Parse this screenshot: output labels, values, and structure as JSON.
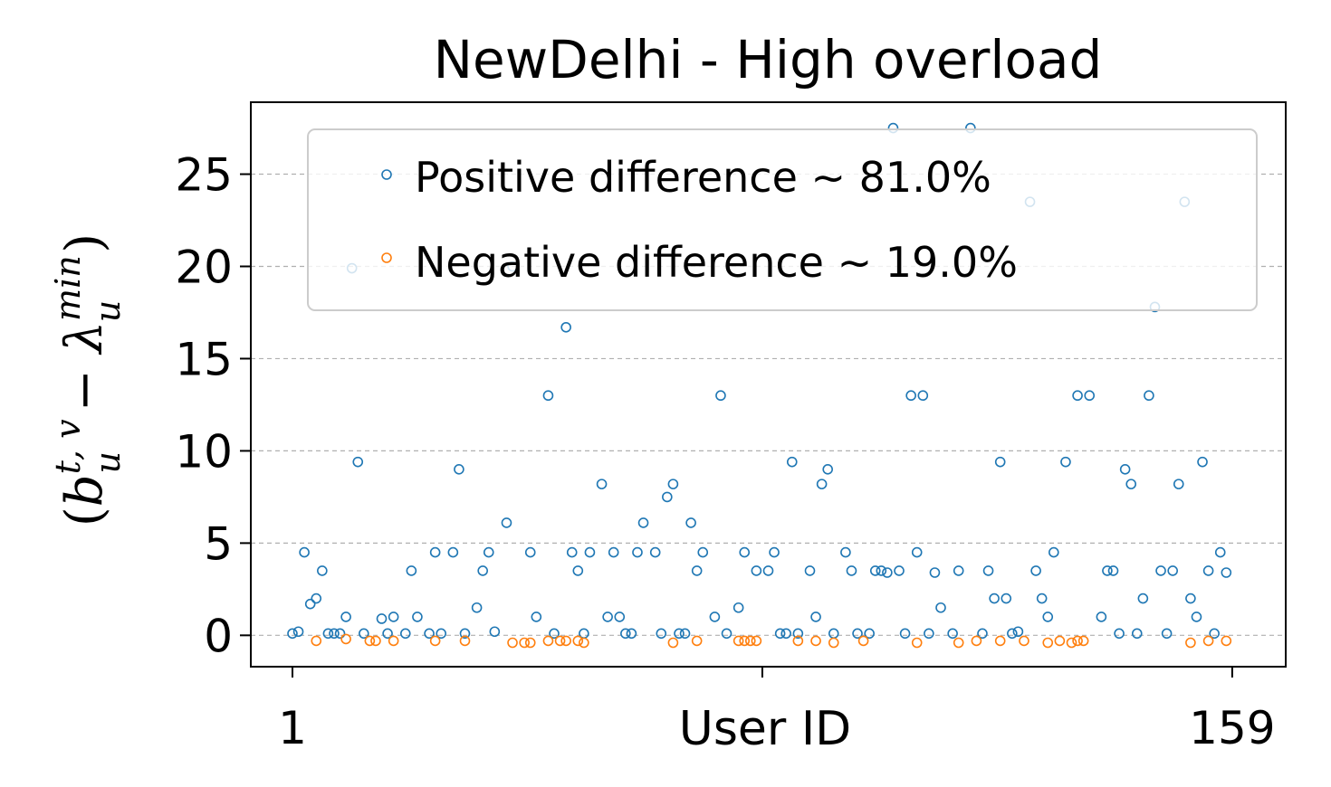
{
  "chart_data": {
    "type": "scatter",
    "title": "NewDelhi - High overload",
    "xlabel": "User ID",
    "ylabel": "(b_u^{t,v} − λ_u^{min})",
    "ylabel_parts": {
      "open": "(",
      "b": "b",
      "sup1": "t, v",
      "sub1": "u",
      "minus": " − ",
      "lambda": "λ",
      "sup2": "min",
      "sub2": "u",
      "close": ")"
    },
    "x_tick_labels": [
      "1",
      "159"
    ],
    "y_ticks": [
      0,
      5,
      10,
      15,
      20,
      25
    ],
    "y_tick_labels": [
      "0",
      "5",
      "10",
      "15",
      "20",
      "25"
    ],
    "xlim": [
      -6,
      168
    ],
    "ylim": [
      -1.7,
      28.9
    ],
    "grid": "y-dashed",
    "legend_position": "top-right",
    "colors": {
      "positive": "#1f77b4",
      "negative": "#ff7f0e"
    },
    "series": [
      {
        "name": "Positive difference ~ 81.0%",
        "x": [
          1,
          2,
          3,
          4,
          5,
          6,
          7,
          8,
          9,
          10,
          11,
          12,
          13,
          16,
          17,
          18,
          20,
          21,
          22,
          24,
          25,
          26,
          28,
          29,
          30,
          32,
          33,
          34,
          35,
          37,
          38,
          41,
          42,
          44,
          45,
          47,
          48,
          49,
          50,
          51,
          53,
          54,
          55,
          56,
          57,
          58,
          59,
          60,
          62,
          63,
          64,
          65,
          66,
          67,
          68,
          69,
          70,
          72,
          73,
          74,
          76,
          77,
          79,
          81,
          82,
          83,
          84,
          85,
          86,
          88,
          89,
          90,
          91,
          92,
          94,
          95,
          96,
          98,
          99,
          100,
          101,
          102,
          103,
          104,
          105,
          106,
          107,
          108,
          109,
          110,
          112,
          113,
          115,
          117,
          118,
          119,
          120,
          121,
          122,
          123,
          125,
          126,
          127,
          128,
          129,
          131,
          133,
          135,
          137,
          138,
          139,
          140,
          141,
          142,
          143,
          144,
          145,
          146,
          147,
          148,
          149,
          150,
          151,
          152,
          153,
          154,
          155,
          156,
          157,
          158
        ],
        "y": [
          0.1,
          0.2,
          4.5,
          1.7,
          2.0,
          3.5,
          0.1,
          0.1,
          0.1,
          1.0,
          19.9,
          9.4,
          0.1,
          0.9,
          0.1,
          1.0,
          0.1,
          3.5,
          1.0,
          0.1,
          4.5,
          0.1,
          4.5,
          9.0,
          0.1,
          1.5,
          3.5,
          4.5,
          0.2,
          6.1,
          20.0,
          4.5,
          1.0,
          13.0,
          0.1,
          16.7,
          4.5,
          3.5,
          0.1,
          4.5,
          8.2,
          1.0,
          4.5,
          1.0,
          0.1,
          0.1,
          4.5,
          6.1,
          4.5,
          0.1,
          7.5,
          8.2,
          0.1,
          0.1,
          6.1,
          3.5,
          4.5,
          1.0,
          13.0,
          0.1,
          1.5,
          4.5,
          3.5,
          3.5,
          4.5,
          0.1,
          0.1,
          9.4,
          0.1,
          3.5,
          1.0,
          8.2,
          9.0,
          0.1,
          4.5,
          3.5,
          0.1,
          0.1,
          3.5,
          3.5,
          3.4,
          27.5,
          3.5,
          0.1,
          13.0,
          4.5,
          13.0,
          0.1,
          3.4,
          1.5,
          0.1,
          3.5,
          27.5,
          0.1,
          3.5,
          2.0,
          9.4,
          2.0,
          0.1,
          0.2,
          23.5,
          3.5,
          2.0,
          1.0,
          4.5,
          9.4,
          13.0,
          13.0,
          1.0,
          3.5,
          3.5,
          0.1,
          9.0,
          8.2,
          0.1,
          2.0,
          13.0,
          17.8,
          3.5,
          0.1,
          3.5,
          8.2,
          23.5,
          2.0,
          1.0,
          9.4,
          3.5,
          0.1,
          4.5,
          3.4
        ]
      },
      {
        "name": "Negative difference ~ 19.0%",
        "x": [
          5,
          10,
          14,
          15,
          18,
          25,
          30,
          38,
          40,
          41,
          44,
          46,
          47,
          49,
          50,
          65,
          69,
          76,
          77,
          78,
          79,
          86,
          89,
          92,
          97,
          106,
          113,
          116,
          120,
          124,
          128,
          130,
          132,
          133,
          134,
          152,
          155,
          158
        ],
        "y": [
          -0.3,
          -0.2,
          -0.3,
          -0.3,
          -0.3,
          -0.3,
          -0.3,
          -0.4,
          -0.4,
          -0.4,
          -0.3,
          -0.3,
          -0.3,
          -0.3,
          -0.4,
          -0.4,
          -0.3,
          -0.3,
          -0.3,
          -0.3,
          -0.3,
          -0.3,
          -0.3,
          -0.4,
          -0.3,
          -0.4,
          -0.4,
          -0.3,
          -0.3,
          -0.3,
          -0.4,
          -0.3,
          -0.4,
          -0.3,
          -0.3,
          -0.4,
          -0.3,
          -0.3
        ]
      }
    ]
  }
}
